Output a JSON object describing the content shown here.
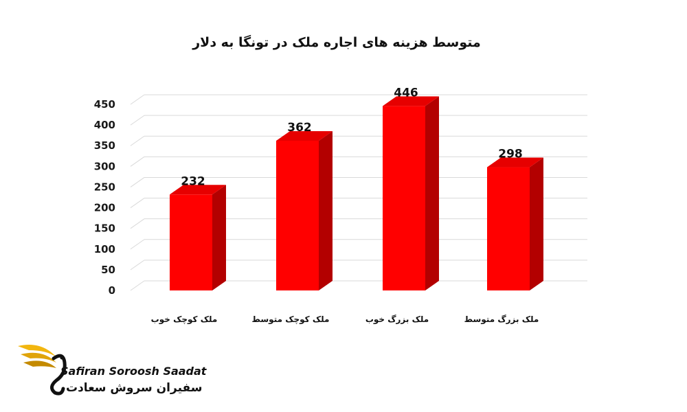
{
  "brand": {
    "name_en": "Safiran Soroosh Saadat",
    "name_fa": "سفیران سروش سعادت",
    "colors": {
      "wing": "#f2b60f",
      "wing_dark": "#c48a00",
      "swan": "#111111"
    }
  },
  "chart_data": {
    "type": "bar",
    "style": "3d",
    "title": "متوسط هزینه های اجاره ملک در تونگا به دلار",
    "categories": [
      "ملک کوچک خوب",
      "ملک کوچک متوسط",
      "ملک بزرگ خوب",
      "ملک بزرگ متوسط"
    ],
    "values": [
      232,
      362,
      446,
      298
    ],
    "value_labels": [
      "232",
      "362",
      "446",
      "298"
    ],
    "ylim": [
      0,
      450
    ],
    "yticks": [
      0,
      50,
      100,
      150,
      200,
      250,
      300,
      350,
      400,
      450
    ],
    "grid": true,
    "legend": "none",
    "colors": {
      "front": "#ff0000",
      "side": "#b30000",
      "top": "#e60000",
      "grid": "#d9d9d9"
    }
  }
}
